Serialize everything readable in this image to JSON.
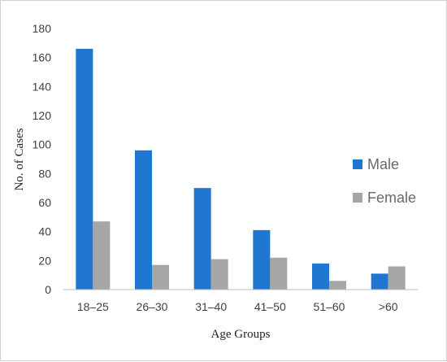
{
  "chart_data": {
    "type": "bar",
    "categories": [
      "18–25",
      "26–30",
      "31–40",
      "41–50",
      "51–60",
      ">60"
    ],
    "series": [
      {
        "name": "Male",
        "values": [
          166,
          96,
          70,
          41,
          18,
          11
        ],
        "color": "#1f77d2"
      },
      {
        "name": "Female",
        "values": [
          47,
          17,
          21,
          22,
          6,
          16
        ],
        "color": "#a6a6a6"
      }
    ],
    "title": "",
    "xlabel": "Age Groups",
    "ylabel": "No. of Cases",
    "ylim": [
      0,
      180
    ],
    "yticks": [
      0,
      20,
      40,
      60,
      80,
      100,
      120,
      140,
      160,
      180
    ],
    "grid": false,
    "legend_position": "right"
  }
}
